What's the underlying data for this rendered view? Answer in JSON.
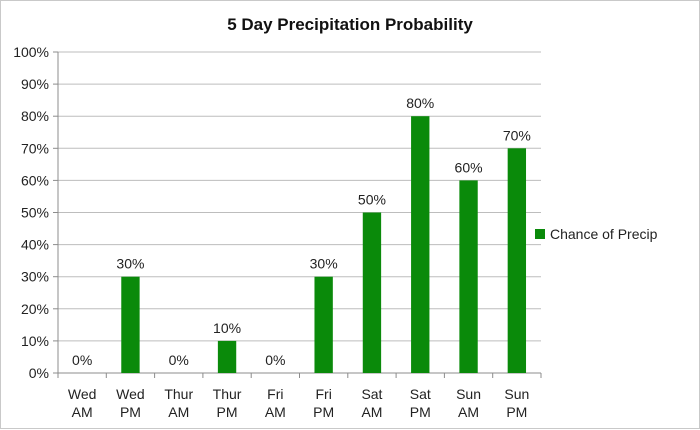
{
  "chart_data": {
    "type": "bar",
    "title": "5 Day Precipitation Probability",
    "categories": [
      [
        "Wed",
        "AM"
      ],
      [
        "Wed",
        "PM"
      ],
      [
        "Thur",
        "AM"
      ],
      [
        "Thur",
        "PM"
      ],
      [
        "Fri",
        "AM"
      ],
      [
        "Fri",
        "PM"
      ],
      [
        "Sat",
        "AM"
      ],
      [
        "Sat",
        "PM"
      ],
      [
        "Sun",
        "AM"
      ],
      [
        "Sun",
        "PM"
      ]
    ],
    "series": [
      {
        "name": "Chance of Precip",
        "values": [
          0,
          30,
          0,
          10,
          0,
          30,
          50,
          80,
          60,
          70
        ]
      }
    ],
    "data_labels": [
      "0%",
      "30%",
      "0%",
      "10%",
      "0%",
      "30%",
      "50%",
      "80%",
      "60%",
      "70%"
    ],
    "y_ticks": [
      "0%",
      "10%",
      "20%",
      "30%",
      "40%",
      "50%",
      "60%",
      "70%",
      "80%",
      "90%",
      "100%"
    ],
    "ylim": [
      0,
      100
    ],
    "xlabel": "",
    "ylabel": "",
    "grid": true,
    "legend_position": "right",
    "bar_color": "#0a8a0a",
    "grid_color": "#bdbdbd",
    "axis_color": "#8c8c8c"
  }
}
